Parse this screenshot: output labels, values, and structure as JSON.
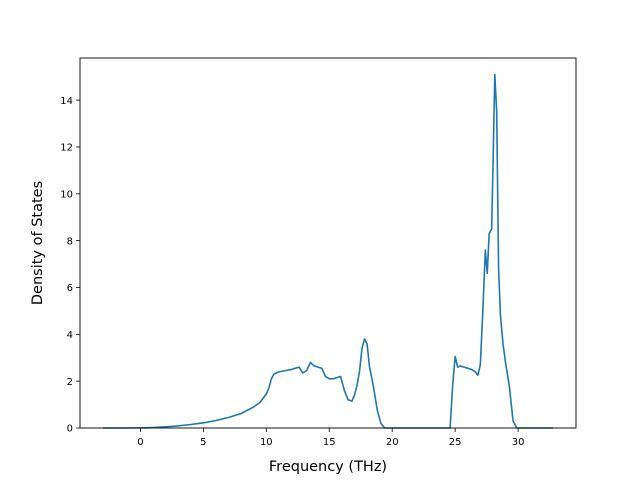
{
  "chart_data": {
    "type": "line",
    "title": "",
    "xlabel": "Frequency (THz)",
    "ylabel": "Density of States",
    "xlim": [
      -4.8,
      34.6
    ],
    "ylim": [
      0,
      15.8
    ],
    "xticks": [
      0,
      5,
      10,
      15,
      20,
      25,
      30
    ],
    "yticks": [
      0,
      2,
      4,
      6,
      8,
      10,
      12,
      14
    ],
    "grid": false,
    "legend": "none",
    "line_color": "#1f77b4",
    "series": [
      {
        "x": [
          -3.0,
          -2.0,
          -1.0,
          0.0,
          0.5,
          1,
          2,
          3,
          4,
          5,
          6,
          7,
          8,
          9,
          9.5,
          10,
          10.2,
          10.4,
          10.6,
          11,
          11.5,
          12,
          12.3,
          12.6,
          12.9,
          13.2,
          13.5,
          13.8,
          14.1,
          14.4,
          14.7,
          15.0,
          15.3,
          15.6,
          15.9,
          16.2,
          16.5,
          16.8,
          17.0,
          17.2,
          17.4,
          17.6,
          17.8,
          18.0,
          18.2,
          18.5,
          18.8,
          19.1,
          19.4,
          20,
          21,
          22,
          23,
          24,
          24.6,
          24.8,
          25.0,
          25.2,
          25.4,
          25.7,
          26.0,
          26.3,
          26.6,
          26.8,
          27.0,
          27.2,
          27.4,
          27.55,
          27.7,
          27.9,
          28.0,
          28.15,
          28.3,
          28.45,
          28.6,
          28.8,
          29.0,
          29.3,
          29.6,
          29.9,
          30.5,
          31.5,
          32.8
        ],
        "y": [
          0,
          0,
          0,
          0.005,
          0.01,
          0.02,
          0.05,
          0.09,
          0.15,
          0.22,
          0.32,
          0.45,
          0.62,
          0.9,
          1.1,
          1.45,
          1.7,
          2.1,
          2.3,
          2.4,
          2.45,
          2.5,
          2.55,
          2.6,
          2.35,
          2.45,
          2.8,
          2.65,
          2.6,
          2.55,
          2.2,
          2.1,
          2.1,
          2.15,
          2.2,
          1.6,
          1.2,
          1.15,
          1.4,
          1.8,
          2.4,
          3.4,
          3.8,
          3.6,
          2.6,
          1.8,
          0.8,
          0.2,
          0,
          0,
          0,
          0,
          0,
          0,
          0,
          1.8,
          3.05,
          2.6,
          2.65,
          2.6,
          2.55,
          2.5,
          2.4,
          2.25,
          2.7,
          5.0,
          7.6,
          6.6,
          8.3,
          8.5,
          11.0,
          15.1,
          13.5,
          6.8,
          4.8,
          3.6,
          2.8,
          1.8,
          0.3,
          0,
          0,
          0,
          0
        ]
      }
    ]
  }
}
